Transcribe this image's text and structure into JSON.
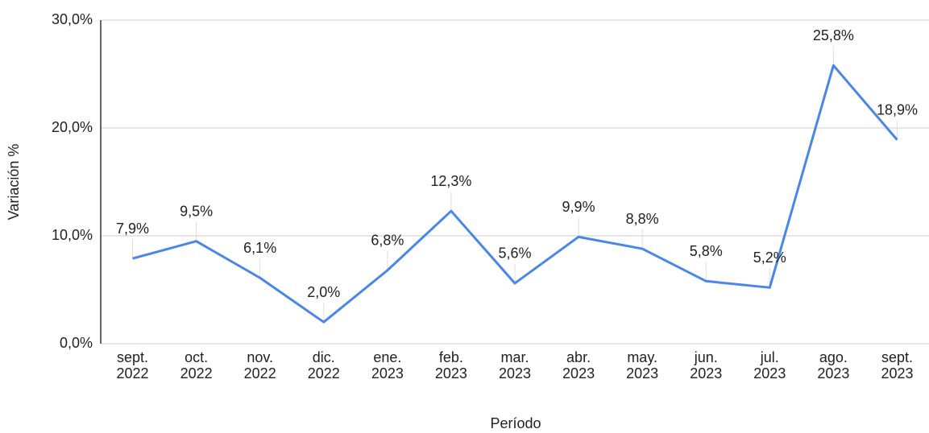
{
  "chart_data": {
    "type": "line",
    "x_label": "Período",
    "y_label": "Variación %",
    "categories": [
      [
        "sept.",
        "2022"
      ],
      [
        "oct.",
        "2022"
      ],
      [
        "nov.",
        "2022"
      ],
      [
        "dic.",
        "2022"
      ],
      [
        "ene.",
        "2023"
      ],
      [
        "feb.",
        "2023"
      ],
      [
        "mar.",
        "2023"
      ],
      [
        "abr.",
        "2023"
      ],
      [
        "may.",
        "2023"
      ],
      [
        "jun.",
        "2023"
      ],
      [
        "jul.",
        "2023"
      ],
      [
        "ago.",
        "2023"
      ],
      [
        "sept.",
        "2023"
      ]
    ],
    "series": [
      {
        "color": "#4a86e8",
        "values": [
          7.9,
          9.5,
          6.1,
          2.0,
          6.8,
          12.3,
          5.6,
          9.9,
          8.8,
          5.8,
          5.2,
          25.8,
          18.9
        ],
        "value_labels": [
          "7,9%",
          "9,5%",
          "6,1%",
          "2,0%",
          "6,8%",
          "12,3%",
          "5,6%",
          "9,9%",
          "8,8%",
          "5,8%",
          "5,2%",
          "25,8%",
          "18,9%"
        ]
      }
    ],
    "ylim": [
      0,
      30
    ],
    "yticks": [
      {
        "value": 0,
        "label": "0,0%"
      },
      {
        "value": 10,
        "label": "10,0%"
      },
      {
        "value": 20,
        "label": "20,0%"
      },
      {
        "value": 30,
        "label": "30,0%"
      }
    ],
    "grid": true
  }
}
